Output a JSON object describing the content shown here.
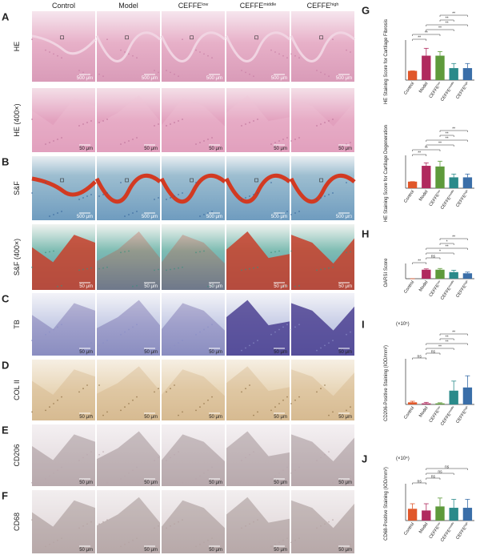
{
  "figure": {
    "columns": [
      {
        "text": "Control"
      },
      {
        "text": "Model"
      },
      {
        "text": "CEFFE",
        "sup": "low"
      },
      {
        "text": "CEFFE",
        "sup": "middle"
      },
      {
        "text": "CEFFE",
        "sup": "high"
      }
    ],
    "rows": [
      {
        "panel": "A",
        "label": "HE",
        "scale": "500 μm"
      },
      {
        "label": "HE (400×)",
        "scale": "50 μm"
      },
      {
        "panel": "B",
        "label": "S&F",
        "scale": "500 μm"
      },
      {
        "label": "S&F (400×)",
        "scale": "50 μm"
      },
      {
        "panel": "C",
        "label": "TB",
        "scale": "50 μm"
      },
      {
        "panel": "D",
        "label": "COL II",
        "scale": "50 μm"
      },
      {
        "panel": "E",
        "label": "CD206",
        "scale": "50 μm"
      },
      {
        "panel": "F",
        "label": "CD68",
        "scale": "50 μm"
      }
    ]
  },
  "chart_data": [
    {
      "type": "bar",
      "panel": "G",
      "ylabel": "HE Staining Score for Cartilage Fibrosis",
      "ylim": [
        0,
        4
      ],
      "categories": [
        {
          "text": "Control"
        },
        {
          "text": "Model"
        },
        {
          "text": "CEFFE",
          "sup": "low"
        },
        {
          "text": "CEFFE",
          "sup": "middle"
        },
        {
          "text": "CEFFE",
          "sup": "high"
        }
      ],
      "values": [
        1.0,
        2.65,
        2.65,
        1.3,
        1.3
      ],
      "errors": [
        0,
        0.8,
        0.45,
        0.5,
        0.5
      ],
      "colors": [
        "#e0572a",
        "#b02a5e",
        "#5e9a3b",
        "#2a8a8a",
        "#3a6ea8"
      ],
      "comparisons": [
        {
          "label": "**",
          "pair": [
            2,
            4
          ]
        },
        {
          "label": "**",
          "pair": [
            2,
            3
          ]
        },
        {
          "label": "**",
          "pair": [
            1,
            4
          ]
        },
        {
          "label": "**",
          "pair": [
            1,
            3
          ]
        },
        {
          "label": "**",
          "pair": [
            0,
            2
          ]
        },
        {
          "label": "**",
          "pair": [
            0,
            1
          ]
        }
      ]
    },
    {
      "type": "bar",
      "ylabel": "HE Staining Score for Cartilage Degeneration",
      "ylim": [
        0,
        4.5
      ],
      "categories": [
        {
          "text": "Control"
        },
        {
          "text": "Model"
        },
        {
          "text": "CEFFE",
          "sup": "low"
        },
        {
          "text": "CEFFE",
          "sup": "middle"
        },
        {
          "text": "CEFFE",
          "sup": "high"
        }
      ],
      "values": [
        1.0,
        3.4,
        3.3,
        1.65,
        1.65
      ],
      "errors": [
        0,
        0.45,
        0.8,
        0.5,
        0.5
      ],
      "colors": [
        "#e0572a",
        "#b02a5e",
        "#5e9a3b",
        "#2a8a8a",
        "#3a6ea8"
      ],
      "comparisons": [
        {
          "label": "**",
          "pair": [
            2,
            4
          ]
        },
        {
          "label": "**",
          "pair": [
            2,
            3
          ]
        },
        {
          "label": "**",
          "pair": [
            1,
            4
          ]
        },
        {
          "label": "**",
          "pair": [
            1,
            3
          ]
        },
        {
          "label": "**",
          "pair": [
            0,
            2
          ]
        },
        {
          "label": "**",
          "pair": [
            0,
            1
          ]
        }
      ]
    },
    {
      "type": "bar",
      "panel": "H",
      "ylabel": "OARSI Score",
      "ylim": [
        0,
        30
      ],
      "categories": [
        {
          "text": "Control"
        },
        {
          "text": "Model"
        },
        {
          "text": "CEFFE",
          "sup": "low"
        },
        {
          "text": "CEFFE",
          "sup": "middle"
        },
        {
          "text": "CEFFE",
          "sup": "high"
        }
      ],
      "values": [
        0,
        22.5,
        22.5,
        16.5,
        13.5
      ],
      "errors": [
        0,
        2,
        3,
        4.5,
        3
      ],
      "colors": [
        "#e0572a",
        "#b02a5e",
        "#5e9a3b",
        "#2a8a8a",
        "#3a6ea8"
      ],
      "comparisons": [
        {
          "label": "**",
          "pair": [
            2,
            4
          ]
        },
        {
          "label": "*",
          "pair": [
            2,
            3
          ]
        },
        {
          "label": "**",
          "pair": [
            1,
            4
          ]
        },
        {
          "label": "*",
          "pair": [
            1,
            3
          ]
        },
        {
          "label": "ns",
          "pair": [
            1,
            2
          ]
        },
        {
          "label": "**",
          "pair": [
            0,
            1
          ]
        }
      ]
    },
    {
      "type": "bar",
      "panel": "I",
      "ylabel": "CD206-Positive Staining (IOD/mm²)",
      "multiplier": "(×10⁵)",
      "ylim": [
        0,
        2
      ],
      "categories": [
        {
          "text": "Control"
        },
        {
          "text": "Model"
        },
        {
          "text": "CEFFE",
          "sup": "low"
        },
        {
          "text": "CEFFE",
          "sup": "middle"
        },
        {
          "text": "CEFFE",
          "sup": "high"
        }
      ],
      "values": [
        0.1,
        0.05,
        0.05,
        0.65,
        0.8
      ],
      "errors": [
        0.05,
        0.05,
        0.03,
        0.45,
        0.55
      ],
      "colors": [
        "#e0572a",
        "#b02a5e",
        "#5e9a3b",
        "#2a8a8a",
        "#3a6ea8"
      ],
      "comparisons": [
        {
          "label": "**",
          "pair": [
            2,
            4
          ]
        },
        {
          "label": "**",
          "pair": [
            2,
            3
          ]
        },
        {
          "label": "**",
          "pair": [
            1,
            4
          ]
        },
        {
          "label": "**",
          "pair": [
            1,
            3
          ]
        },
        {
          "label": "ns",
          "pair": [
            1,
            2
          ]
        },
        {
          "label": "ns",
          "pair": [
            0,
            1
          ]
        }
      ]
    },
    {
      "type": "bar",
      "panel": "J",
      "ylabel": "CD68-Positive Staining (IOD/mm²)",
      "multiplier": "(×10⁴)",
      "ylim": [
        0,
        10
      ],
      "categories": [
        {
          "text": "Control"
        },
        {
          "text": "Model"
        },
        {
          "text": "CEFFE",
          "sup": "low"
        },
        {
          "text": "CEFFE",
          "sup": "middle"
        },
        {
          "text": "CEFFE",
          "sup": "high"
        }
      ],
      "values": [
        3.5,
        3.0,
        4.2,
        3.8,
        3.8
      ],
      "errors": [
        1.5,
        2,
        2.5,
        2.5,
        2.5
      ],
      "colors": [
        "#e0572a",
        "#b02a5e",
        "#5e9a3b",
        "#2a8a8a",
        "#3a6ea8"
      ],
      "comparisons": [
        {
          "label": "ns",
          "pair": [
            1,
            4
          ]
        },
        {
          "label": "ns",
          "pair": [
            1,
            3
          ]
        },
        {
          "label": "ns",
          "pair": [
            1,
            2
          ]
        },
        {
          "label": "ns",
          "pair": [
            0,
            1
          ]
        }
      ]
    }
  ]
}
